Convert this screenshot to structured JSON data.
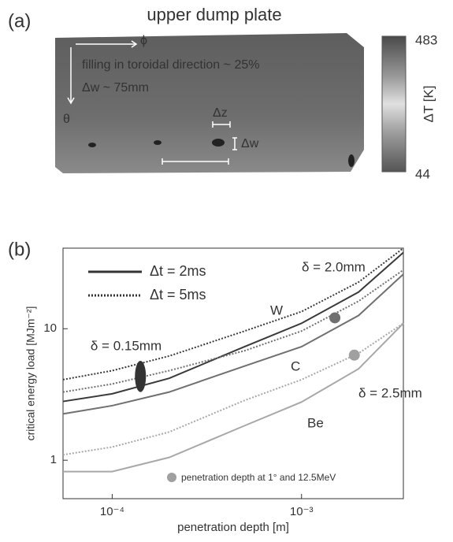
{
  "panel_a": {
    "panel_label": "(a)",
    "title": "upper dump plate",
    "annotations": [
      "filling in toroidal direction ~ 25%",
      "Δw ~ 75mm",
      "ϕ",
      "θ",
      "Δz",
      "Δw"
    ],
    "colorbar": {
      "label": "ΔT [K]",
      "max": 483,
      "min": 44
    }
  },
  "chart_data": {
    "type": "line",
    "panel_label": "(b)",
    "xlabel": "penetration depth [m]",
    "ylabel": "critical energy load [MJm⁻²]",
    "xscale": "log",
    "yscale": "log",
    "xlim": [
      5.5e-05,
      0.00345
    ],
    "ylim": [
      0.51,
      41
    ],
    "xticks": [
      {
        "value": 0.0001,
        "label": "10⁻⁴"
      },
      {
        "value": 0.001,
        "label": "10⁻³"
      }
    ],
    "yticks": [
      1,
      10
    ],
    "x": [
      5.5e-05,
      0.0001,
      0.0002,
      0.0005,
      0.001,
      0.002,
      0.00345
    ],
    "series": [
      {
        "color": "#3a3a3a",
        "style": "solid",
        "values": [
          2.8,
          3.2,
          4.2,
          7.3,
          11,
          19,
          38
        ]
      },
      {
        "color": "#3a3a3a",
        "style": "dotted",
        "values": [
          4.1,
          4.8,
          6.2,
          9.6,
          13.5,
          22.6,
          41
        ]
      },
      {
        "color": "#707070",
        "style": "solid",
        "values": [
          2.25,
          2.6,
          3.3,
          5.2,
          7.3,
          12.6,
          26
        ]
      },
      {
        "color": "#707070",
        "style": "dotted",
        "values": [
          3.3,
          3.8,
          4.8,
          6.8,
          9.6,
          16.2,
          28
        ]
      },
      {
        "color": "#a8a8a8",
        "style": "solid",
        "values": [
          0.82,
          0.82,
          1.05,
          1.83,
          2.77,
          4.95,
          11
        ]
      },
      {
        "color": "#a8a8a8",
        "style": "dotted",
        "values": [
          1.1,
          1.26,
          1.64,
          2.85,
          4.1,
          6.5,
          11
        ]
      }
    ],
    "legend": [
      {
        "label": "Δt = 2ms",
        "style": "solid"
      },
      {
        "label": "Δt = 5ms",
        "style": "dotted"
      }
    ],
    "annotations": [
      "W",
      "C",
      "Be",
      "δ = 2.0mm",
      "δ = 0.15mm",
      "δ = 2.5mm"
    ],
    "markers": [
      {
        "x": 0.0015,
        "y": 12.1
      },
      {
        "x": 0.0019,
        "y": 6.3
      }
    ],
    "marker_label": "penetration depth at 1° and 12.5MeV",
    "ellipse": {
      "x": 0.000141,
      "y_low": 3.3,
      "y_high": 5.7
    }
  }
}
